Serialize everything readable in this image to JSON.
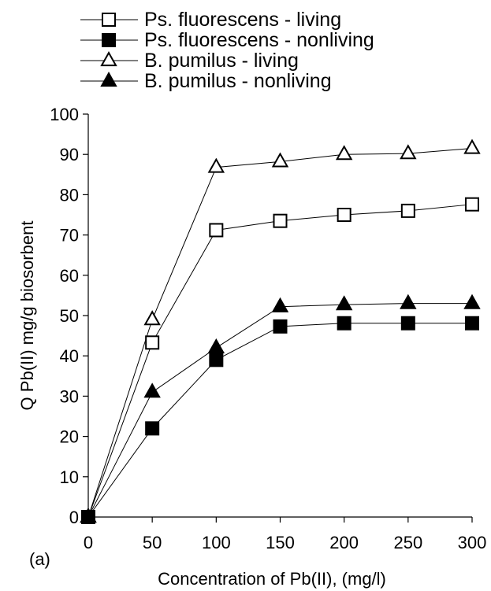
{
  "chart_data": {
    "type": "line",
    "panel_label": "(a)",
    "xlabel": "Concentration of Pb(II), (mg/l)",
    "ylabel": "Q Pb(II) mg/g biosorbent",
    "xlim": [
      0,
      300
    ],
    "ylim": [
      0,
      100
    ],
    "x_ticks": [
      0,
      50,
      100,
      150,
      200,
      250,
      300
    ],
    "y_ticks": [
      0,
      10,
      20,
      30,
      40,
      50,
      60,
      70,
      80,
      90,
      100
    ],
    "grid": false,
    "legend_position": "top",
    "x": [
      0,
      50,
      100,
      150,
      200,
      250,
      300
    ],
    "series": [
      {
        "name": "Ps. fluorescens - living",
        "marker": "square-open",
        "values": [
          0,
          43.3,
          71.2,
          73.5,
          75,
          76,
          77.6
        ]
      },
      {
        "name": "Ps. fluorescens - nonliving",
        "marker": "square-filled",
        "values": [
          0,
          22,
          39,
          47.3,
          48.1,
          48.1,
          48.1
        ]
      },
      {
        "name": "B. pumilus - living",
        "marker": "triangle-open",
        "values": [
          0,
          49,
          86.8,
          88.2,
          90,
          90.2,
          91.5
        ]
      },
      {
        "name": "B. pumilus - nonliving",
        "marker": "triangle-filled",
        "values": [
          0,
          31,
          42,
          52.2,
          52.7,
          53,
          53
        ]
      }
    ]
  }
}
